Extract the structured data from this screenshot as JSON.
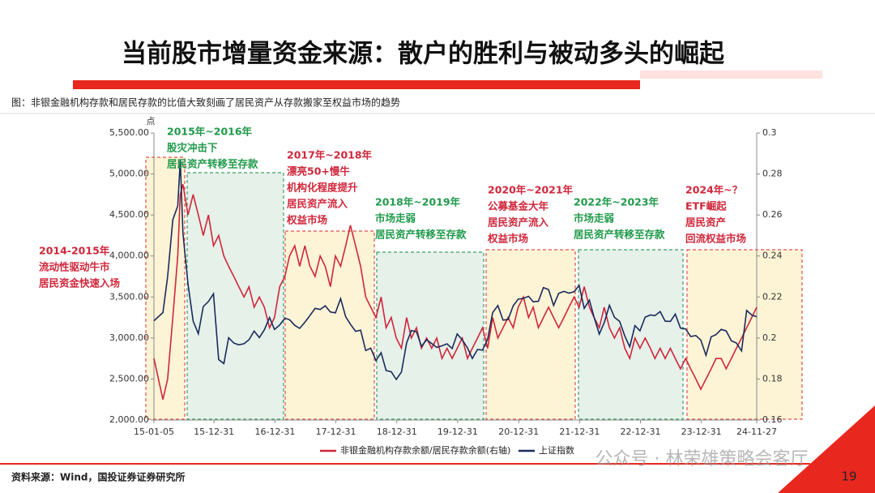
{
  "title": "当前股市增量资金来源：散户的胜利与被动多头的崛起",
  "caption": "图：非银金融机构存款和居民存款的比值大致刻画了居民资产从存款搬家至权益市场的趋势",
  "source": "资料来源：Wind，国投证券证券研究所",
  "page_number": "19",
  "watermark": "公众号 · 林荣雄策略会客厅",
  "chart_data": {
    "type": "line",
    "ylabel": "点",
    "xlim": [
      "15-01-05",
      "24-11-27"
    ],
    "xticks": [
      "15-01-05",
      "15-12-31",
      "16-12-31",
      "17-12-31",
      "18-12-31",
      "19-12-31",
      "20-12-31",
      "21-12-31",
      "22-12-31",
      "23-12-31",
      "24-11-27"
    ],
    "ylim": [
      2000,
      5500
    ],
    "yticks": [
      {
        "value": 2000,
        "label": "2,000.00"
      },
      {
        "value": 2500,
        "label": "2,500.00"
      },
      {
        "value": 3000,
        "label": "3,000.00"
      },
      {
        "value": 3500,
        "label": "3,500.00"
      },
      {
        "value": 4000,
        "label": "4,000.00"
      },
      {
        "value": 4500,
        "label": "4,500.00"
      },
      {
        "value": 5000,
        "label": "5,000.00"
      },
      {
        "value": 5500,
        "label": "5,500.00"
      }
    ],
    "y2lim": [
      0.16,
      0.3
    ],
    "y2ticks": [
      0.16,
      0.18,
      0.2,
      0.22,
      0.24,
      0.26,
      0.28,
      0.3
    ],
    "x": [
      "15-01-05",
      "15-02-28",
      "15-03-28",
      "15-04-28",
      "15-05-28",
      "15-06-12",
      "15-06-28",
      "15-07-28",
      "15-08-28",
      "15-09-28",
      "15-10-28",
      "15-11-28",
      "15-12-28",
      "16-01-28",
      "16-02-28",
      "16-03-28",
      "16-04-28",
      "16-05-28",
      "16-06-28",
      "16-07-28",
      "16-08-28",
      "16-09-28",
      "16-10-28",
      "16-11-28",
      "16-12-28",
      "17-01-28",
      "17-02-28",
      "17-03-28",
      "17-04-28",
      "17-05-28",
      "17-06-28",
      "17-07-28",
      "17-08-28",
      "17-09-28",
      "17-10-28",
      "17-11-28",
      "17-12-28",
      "18-01-28",
      "18-02-28",
      "18-03-28",
      "18-04-28",
      "18-05-28",
      "18-06-28",
      "18-07-28",
      "18-08-28",
      "18-09-28",
      "18-10-28",
      "18-11-28",
      "18-12-28",
      "19-01-28",
      "19-02-28",
      "19-03-28",
      "19-04-28",
      "19-05-28",
      "19-06-28",
      "19-07-28",
      "19-08-28",
      "19-09-28",
      "19-10-28",
      "19-11-28",
      "19-12-28",
      "20-01-28",
      "20-02-28",
      "20-03-28",
      "20-04-28",
      "20-05-28",
      "20-06-28",
      "20-07-28",
      "20-08-28",
      "20-09-28",
      "20-10-28",
      "20-11-28",
      "20-12-28",
      "21-01-28",
      "21-02-28",
      "21-03-28",
      "21-04-28",
      "21-05-28",
      "21-06-28",
      "21-07-28",
      "21-08-28",
      "21-09-28",
      "21-10-28",
      "21-11-28",
      "21-12-28",
      "22-01-28",
      "22-02-28",
      "22-03-28",
      "22-04-28",
      "22-05-28",
      "22-06-28",
      "22-07-28",
      "22-08-28",
      "22-09-28",
      "22-10-28",
      "22-11-28",
      "22-12-28",
      "23-01-28",
      "23-02-28",
      "23-03-28",
      "23-04-28",
      "23-05-28",
      "23-06-28",
      "23-07-28",
      "23-08-28",
      "23-09-28",
      "23-10-28",
      "23-11-28",
      "23-12-28",
      "24-01-28",
      "24-02-28",
      "24-03-28",
      "24-04-28",
      "24-05-28",
      "24-06-28",
      "24-07-28",
      "24-08-28",
      "24-09-28",
      "24-10-28",
      "24-11-27"
    ],
    "series": [
      {
        "name": "非银金融机构存款余额/居民存款余额(右轴)",
        "color": "#d0263a",
        "axis": "y2",
        "values": [
          0.19,
          0.17,
          0.18,
          0.21,
          0.24,
          0.27,
          0.275,
          0.26,
          0.27,
          0.26,
          0.25,
          0.26,
          0.245,
          0.25,
          0.24,
          0.235,
          0.23,
          0.225,
          0.22,
          0.225,
          0.215,
          0.22,
          0.215,
          0.205,
          0.21,
          0.225,
          0.23,
          0.24,
          0.245,
          0.235,
          0.245,
          0.235,
          0.23,
          0.24,
          0.235,
          0.225,
          0.24,
          0.235,
          0.245,
          0.255,
          0.245,
          0.235,
          0.22,
          0.215,
          0.21,
          0.22,
          0.205,
          0.21,
          0.2,
          0.195,
          0.21,
          0.2,
          0.205,
          0.195,
          0.2,
          0.195,
          0.2,
          0.19,
          0.195,
          0.19,
          0.195,
          0.2,
          0.19,
          0.195,
          0.2,
          0.205,
          0.195,
          0.21,
          0.2,
          0.205,
          0.21,
          0.205,
          0.215,
          0.22,
          0.21,
          0.215,
          0.205,
          0.21,
          0.215,
          0.21,
          0.205,
          0.21,
          0.215,
          0.22,
          0.215,
          0.225,
          0.215,
          0.21,
          0.205,
          0.215,
          0.205,
          0.2,
          0.205,
          0.195,
          0.19,
          0.2,
          0.195,
          0.2,
          0.195,
          0.19,
          0.195,
          0.19,
          0.195,
          0.19,
          0.185,
          0.19,
          0.185,
          0.18,
          0.175,
          0.18,
          0.185,
          0.19,
          0.19,
          0.185,
          0.19,
          0.195,
          0.2,
          0.205,
          0.21,
          0.215
        ]
      },
      {
        "name": "上证指数",
        "color": "#1b2a5c",
        "values": [
          3210,
          3310,
          3748,
          4441,
          4611,
          5166,
          4277,
          3664,
          3206,
          3053,
          3383,
          3445,
          3539,
          2738,
          2688,
          3004,
          2938,
          2917,
          2930,
          2979,
          3085,
          3005,
          3100,
          3250,
          3104,
          3159,
          3242,
          3223,
          3155,
          3117,
          3192,
          3273,
          3361,
          3349,
          3393,
          3317,
          3307,
          3481,
          3259,
          3169,
          3082,
          3095,
          2847,
          2876,
          2725,
          2821,
          2603,
          2588,
          2494,
          2585,
          2941,
          3091,
          3078,
          2899,
          2979,
          2933,
          2886,
          2905,
          2929,
          2872,
          3050,
          2977,
          2880,
          2750,
          2860,
          2852,
          2985,
          3310,
          3396,
          3218,
          3225,
          3392,
          3473,
          3483,
          3509,
          3442,
          3447,
          3615,
          3591,
          3397,
          3544,
          3568,
          3547,
          3564,
          3640,
          3361,
          3462,
          3252,
          3047,
          3186,
          3399,
          3253,
          3202,
          3024,
          2893,
          3151,
          3089,
          3255,
          3280,
          3273,
          3323,
          3205,
          3202,
          3291,
          3120,
          3110,
          3018,
          3030,
          2975,
          2789,
          3015,
          3041,
          3105,
          3087,
          2967,
          2939,
          2842,
          3336,
          3280,
          3260
        ]
      }
    ],
    "annotations": [
      {
        "color": "#d0263a",
        "lines": [
          "2014-2015年",
          "流动性驱动牛市",
          "居民资金快速入场"
        ]
      },
      {
        "color": "#1f9a4a",
        "lines": [
          "2015年~2016年",
          "股灾冲击下",
          "居民资产转移至存款"
        ]
      },
      {
        "color": "#d0263a",
        "lines": [
          "2017年~2018年",
          "漂亮50+慢牛",
          "机构化程度提升",
          "居民资产流入",
          "权益市场"
        ]
      },
      {
        "color": "#1f9a4a",
        "lines": [
          "2018年~2019年",
          "市场走弱",
          "居民资产转移至存款"
        ]
      },
      {
        "color": "#d0263a",
        "lines": [
          "2020年~2021年",
          "公募基金大年",
          "居民资产流入",
          "权益市场"
        ]
      },
      {
        "color": "#1f9a4a",
        "lines": [
          "2022年~2023年",
          "市场走弱",
          "居民资产转移至存款"
        ]
      },
      {
        "color": "#d0263a",
        "lines": [
          "2024年~？",
          "ETF崛起",
          "居民资产",
          "回流权益市场"
        ]
      }
    ]
  }
}
